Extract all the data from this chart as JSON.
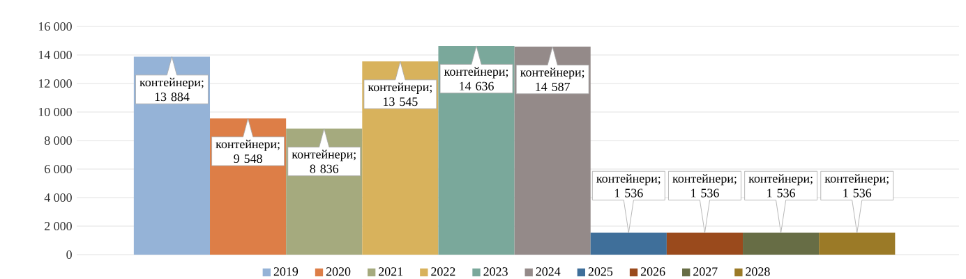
{
  "chart_data": {
    "type": "bar",
    "categories": [
      null
    ],
    "series": [
      {
        "name": "2019",
        "color": "#95b3d7",
        "values": [
          13884
        ],
        "value_labels": [
          "контейнери; 13 884"
        ]
      },
      {
        "name": "2020",
        "color": "#dd7e47",
        "values": [
          9548
        ],
        "value_labels": [
          "контейнери; 9 548"
        ]
      },
      {
        "name": "2021",
        "color": "#a5aa7e",
        "values": [
          8836
        ],
        "value_labels": [
          "контейнери; 8 836"
        ]
      },
      {
        "name": "2022",
        "color": "#d8b25c",
        "values": [
          13545
        ],
        "value_labels": [
          "контейнери; 13 545"
        ]
      },
      {
        "name": "2023",
        "color": "#7aa89b",
        "values": [
          14636
        ],
        "value_labels": [
          "контейнери; 14 636"
        ]
      },
      {
        "name": "2024",
        "color": "#948a89",
        "values": [
          14587
        ],
        "value_labels": [
          "контейнери; 14 587"
        ]
      },
      {
        "name": "2025",
        "color": "#3f6f9a",
        "values": [
          1536
        ],
        "value_labels": [
          "контейнери; 1 536"
        ]
      },
      {
        "name": "2026",
        "color": "#9a4a1c",
        "values": [
          1536
        ],
        "value_labels": [
          "контейнери; 1 536"
        ]
      },
      {
        "name": "2027",
        "color": "#676d45",
        "values": [
          1536
        ],
        "value_labels": [
          "контейнери; 1 536"
        ]
      },
      {
        "name": "2028",
        "color": "#9b7a27",
        "values": [
          1536
        ],
        "value_labels": [
          "контейнери; 1 536"
        ]
      }
    ],
    "ylim": [
      0,
      16000
    ],
    "yticks": [
      0,
      {
        "value": 2000,
        "label": "2 000"
      },
      {
        "value": 4000,
        "label": "4 000"
      },
      {
        "value": 6000,
        "label": "6 000"
      },
      {
        "value": 8000,
        "label": "8 000"
      },
      {
        "value": 10000,
        "label": "10 000"
      },
      {
        "value": 12000,
        "label": "12 000"
      },
      {
        "value": 14000,
        "label": "14 000"
      },
      {
        "value": 16000,
        "label": "16 000"
      }
    ],
    "grid": "y",
    "legend": "bottom"
  }
}
